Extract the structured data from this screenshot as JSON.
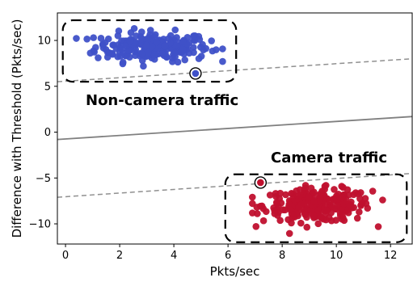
{
  "chart_data": {
    "type": "scatter",
    "xlabel": "Pkts/sec",
    "ylabel": "Difference with Threshold (Pkts/sec)",
    "xlim": [
      -0.3,
      12.8
    ],
    "ylim": [
      -12.2,
      13.0
    ],
    "x_ticks": [
      0,
      2,
      4,
      6,
      8,
      10,
      12
    ],
    "y_ticks": [
      -10,
      -5,
      0,
      5,
      10
    ],
    "grid": false,
    "series": [
      {
        "color": "#3f51c8",
        "center": [
          3.2,
          9.3
        ],
        "spread": [
          1.05,
          0.8
        ],
        "count": 230,
        "range_x": [
          0.4,
          5.8
        ],
        "range_y": [
          7.0,
          11.4
        ]
      },
      {
        "color": "#c0102e",
        "center": [
          9.3,
          -8.0
        ],
        "spread": [
          1.0,
          0.9
        ],
        "count": 260,
        "range_x": [
          6.9,
          12.3
        ],
        "range_y": [
          -11.1,
          -5.8
        ]
      }
    ],
    "highlighted_points": [
      {
        "x": 4.8,
        "y": 6.4,
        "color": "#3f51c8"
      },
      {
        "x": 7.2,
        "y": -5.5,
        "color": "#c0102e"
      }
    ],
    "lines": [
      {
        "style": "solid",
        "color": "#808080",
        "x": [
          -0.3,
          12.8
        ],
        "y": [
          -0.8,
          1.7
        ]
      },
      {
        "style": "dashed",
        "color": "#909090",
        "x": [
          -0.3,
          12.8
        ],
        "y": [
          5.5,
          8.0
        ]
      },
      {
        "style": "dashed",
        "color": "#909090",
        "x": [
          -0.3,
          12.8
        ],
        "y": [
          -7.1,
          -4.5
        ]
      }
    ],
    "regions": [
      {
        "label": "Non-camera traffic",
        "x0": -0.1,
        "x1": 6.3,
        "y0": 5.5,
        "y1": 12.2
      },
      {
        "label": "Camera traffic",
        "x0": 5.9,
        "x1": 12.6,
        "y0": -12.0,
        "y1": -4.6
      }
    ]
  }
}
